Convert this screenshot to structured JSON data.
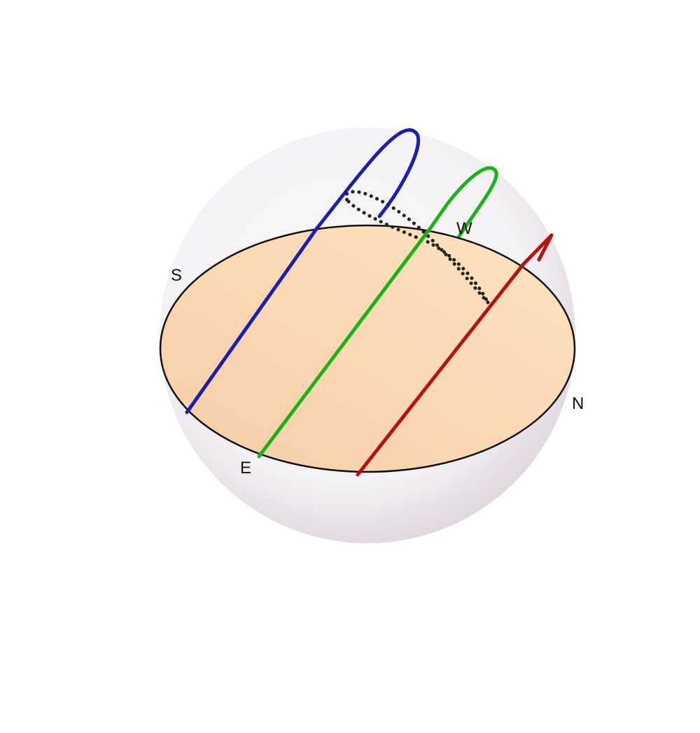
{
  "scene": {
    "directions": {
      "south": "S",
      "west": "W",
      "north": "N",
      "east": "E"
    },
    "colors": {
      "sphere_light": "#f4f2f5",
      "sphere_dark": "#ddd3da",
      "horizon_light": "#fde3c0",
      "horizon_dark": "#f6cda4",
      "horizon_edge": "#111111",
      "path_blue": "#1a1fb3",
      "path_green": "#17b317",
      "path_red": "#b80f0f",
      "dotted_path": "#222222"
    },
    "paths": [
      {
        "name": "blue-sun-path",
        "color_key": "path_blue"
      },
      {
        "name": "green-sun-path",
        "color_key": "path_green"
      },
      {
        "name": "red-sun-path",
        "color_key": "path_red"
      }
    ]
  }
}
